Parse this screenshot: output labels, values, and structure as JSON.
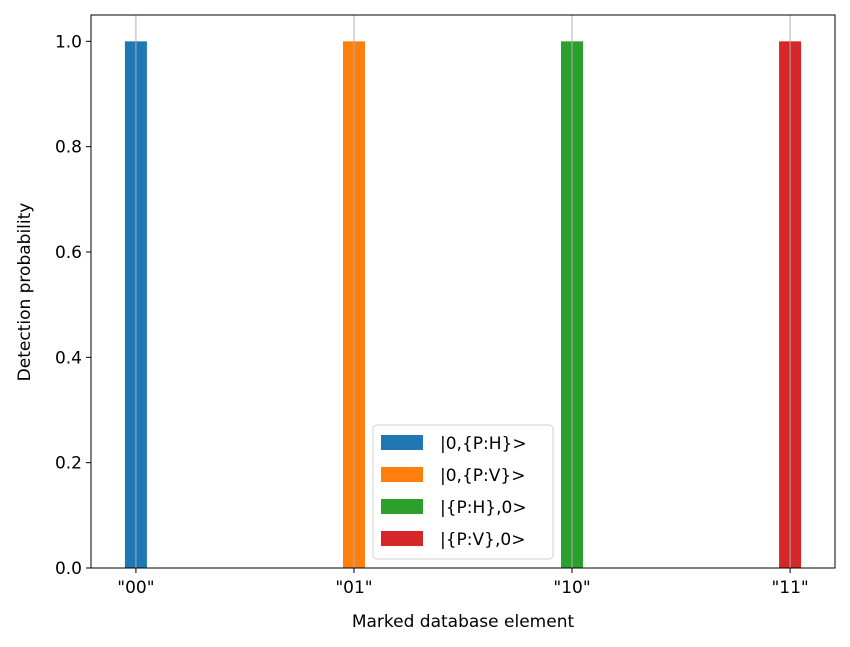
{
  "chart_data": {
    "type": "bar",
    "title": "",
    "xlabel": "Marked database element",
    "ylabel": "Detection probability",
    "categories": [
      "\"00\"",
      "\"01\"",
      "\"10\"",
      "\"11\""
    ],
    "ylim": [
      0,
      1.05
    ],
    "yticks": [
      "0.0",
      "0.2",
      "0.4",
      "0.6",
      "0.8",
      "1.0"
    ],
    "grid": "x-axis vertical lines",
    "legend_placement": "lower center",
    "series": [
      {
        "name": "|0,{P:H}>",
        "color": "#1f77b4",
        "values": [
          1.0,
          0,
          0,
          0
        ]
      },
      {
        "name": "|0,{P:V}>",
        "color": "#ff7f0e",
        "values": [
          0,
          1.0,
          0,
          0
        ]
      },
      {
        "name": "|{P:H},0>",
        "color": "#2ca02c",
        "values": [
          0,
          0,
          1.0,
          0
        ]
      },
      {
        "name": "|{P:V},0>",
        "color": "#d62728",
        "values": [
          0,
          0,
          0,
          1.0
        ]
      }
    ]
  }
}
